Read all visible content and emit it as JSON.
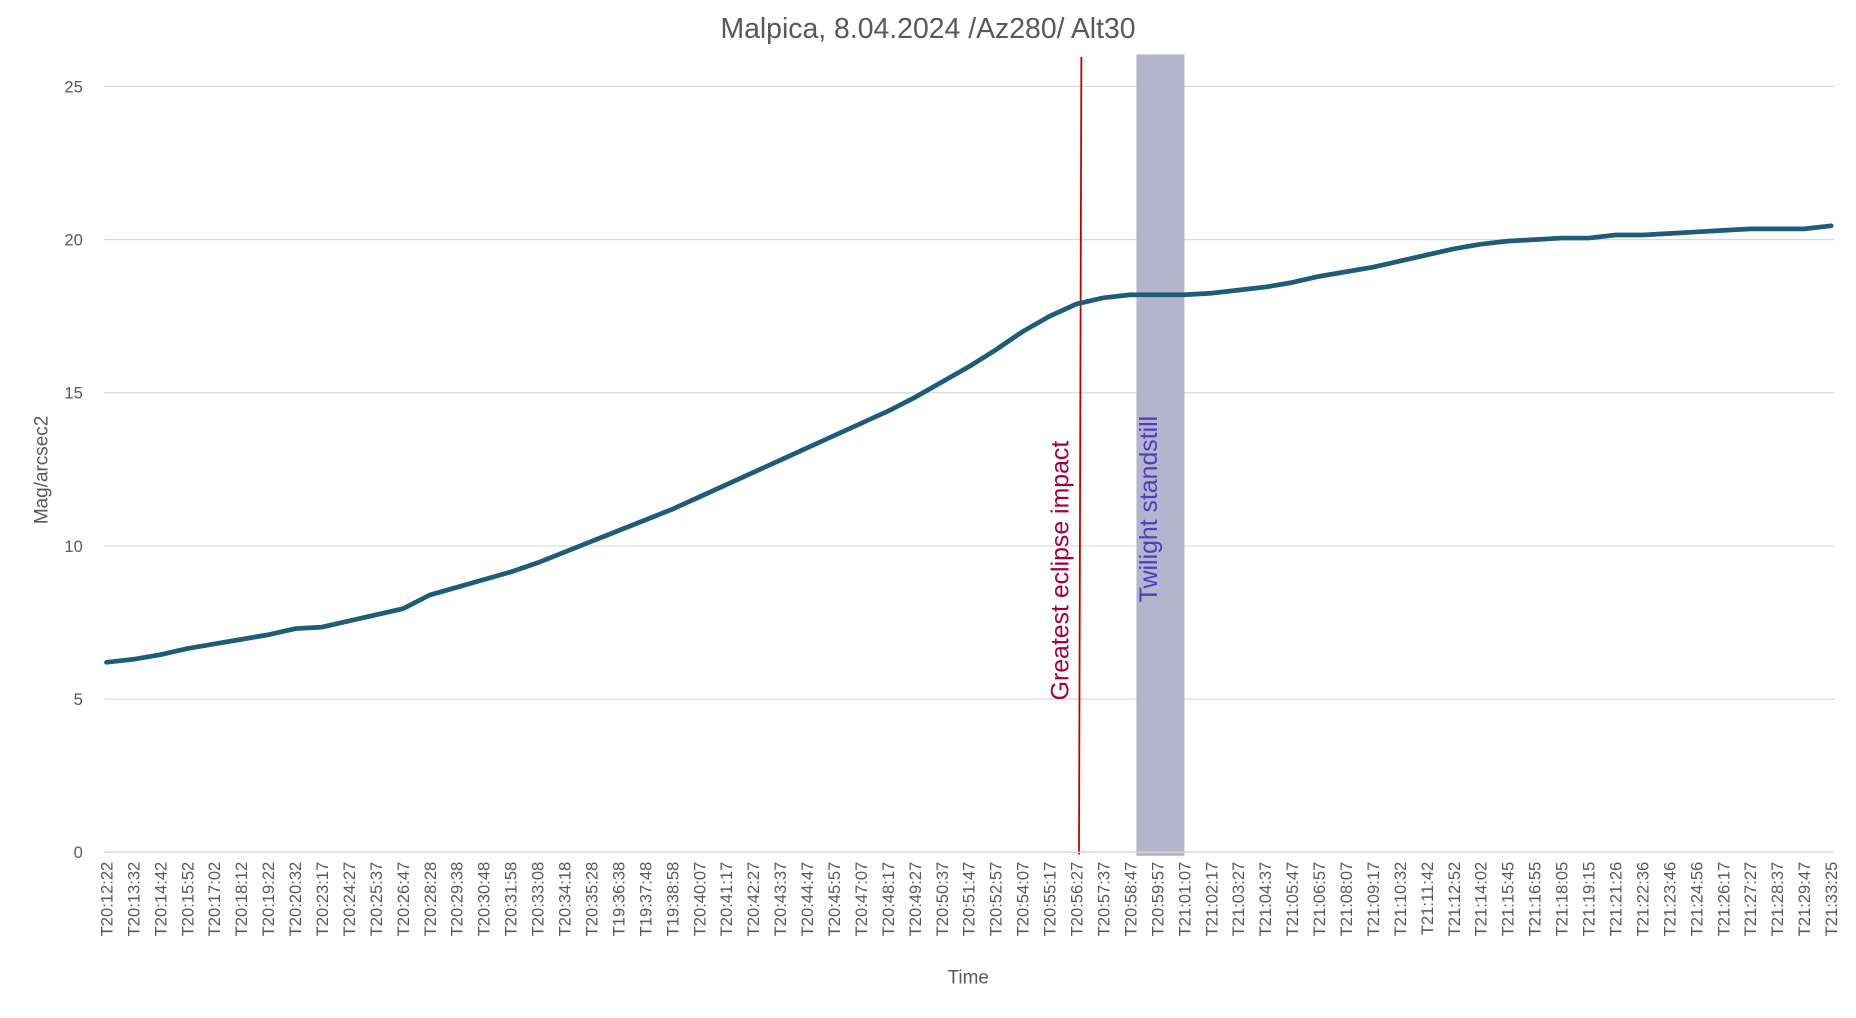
{
  "chart_data": {
    "type": "line",
    "title": "Malpica, 8.04.2024 /Az280/ Alt30",
    "x_label": "Time",
    "y_label": "Mag/arcsec2",
    "categories": [
      "T20:12:22",
      "T20:13:32",
      "T20:14:42",
      "T20:15:52",
      "T20:17:02",
      "T20:18:12",
      "T20:19:22",
      "T20:20:32",
      "T20:23:17",
      "T20:24:27",
      "T20:25:37",
      "T20:26:47",
      "T20:28:28",
      "T20:29:38",
      "T20:30:48",
      "T20:31:58",
      "T20:33:08",
      "T20:34:18",
      "T20:35:28",
      "T19:36:38",
      "T19:37:48",
      "T19:38:58",
      "T20:40:07",
      "T20:41:17",
      "T20:42:27",
      "T20:43:37",
      "T20:44:47",
      "T20:45:57",
      "T20:47:07",
      "T20:48:17",
      "T20:49:27",
      "T20:50:37",
      "T20:51:47",
      "T20:52:57",
      "T20:54:07",
      "T20:55:17",
      "T20:56:27",
      "T20:57:37",
      "T20:58:47",
      "T20:59:57",
      "T21:01:07",
      "T21:02:17",
      "T21:03:27",
      "T21:04:37",
      "T21:05:47",
      "T21:06:57",
      "T21:08:07",
      "T21:09:17",
      "T21:10:32",
      "T21:11:42",
      "T21:12:52",
      "T21:14:02",
      "T21:15:45",
      "T21:16:55",
      "T21:18:05",
      "T21:19:15",
      "T21:21:26",
      "T21:22:36",
      "T21:23:46",
      "T21:24:56",
      "T21:26:17",
      "T21:27:27",
      "T21:28:37",
      "T21:29:47",
      "T21:33:25"
    ],
    "values": [
      6.2,
      6.3,
      6.45,
      6.65,
      6.8,
      6.95,
      7.1,
      7.3,
      7.35,
      7.55,
      7.75,
      7.95,
      8.4,
      8.65,
      8.9,
      9.15,
      9.45,
      9.8,
      10.15,
      10.5,
      10.85,
      11.2,
      11.6,
      12.0,
      12.4,
      12.8,
      13.2,
      13.6,
      14.0,
      14.4,
      14.85,
      15.35,
      15.85,
      16.4,
      17.0,
      17.5,
      17.9,
      18.1,
      18.2,
      18.2,
      18.2,
      18.25,
      18.35,
      18.45,
      18.6,
      18.8,
      18.95,
      19.1,
      19.3,
      19.5,
      19.7,
      19.85,
      19.95,
      20.0,
      20.05,
      20.05,
      20.15,
      20.15,
      20.2,
      20.25,
      20.3,
      20.35,
      20.35,
      20.35,
      20.45
    ],
    "color": "#1f5c7a",
    "ylim": [
      0,
      25
    ],
    "yticks": [
      0,
      5,
      10,
      15,
      20,
      25
    ],
    "grid": true,
    "annotations": [
      {
        "kind": "line",
        "text": "Greatest eclipse impact",
        "x": "T20:56:27",
        "color": "#c00000",
        "text_color": "#a0003c"
      },
      {
        "kind": "band",
        "text": "Twilight standstill",
        "x_start": "T20:58:47",
        "x_end": "T21:01:07",
        "color": "#b4b4cc",
        "text_color": "#4b3fbf"
      }
    ]
  }
}
